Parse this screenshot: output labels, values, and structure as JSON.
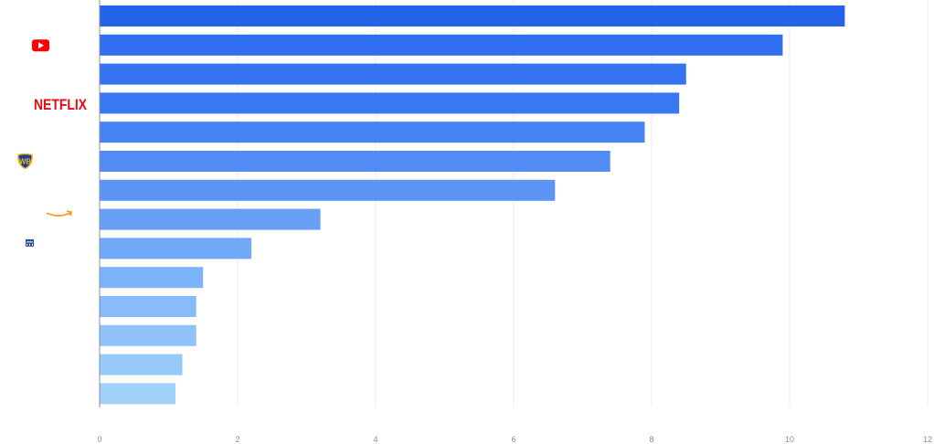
{
  "chart_data": {
    "type": "bar",
    "orientation": "horizontal",
    "title": "",
    "xlabel": "",
    "ylabel": "",
    "xlim": [
      0,
      12
    ],
    "xticks": [
      "0",
      "2",
      "4",
      "6",
      "8",
      "10",
      "12"
    ],
    "grid": true,
    "categories": [
      "",
      "YouTube",
      "",
      "Netflix",
      "",
      "Warner Bros",
      "",
      "Amazon",
      "",
      "",
      "",
      "",
      "",
      ""
    ],
    "values": [
      10.8,
      9.9,
      8.5,
      8.4,
      7.9,
      7.4,
      6.6,
      3.2,
      2.2,
      1.5,
      1.4,
      1.4,
      1.2,
      1.1
    ],
    "colors": [
      "#2563eb",
      "#2f6ef0",
      "#3473f1",
      "#3a78f2",
      "#4682f3",
      "#518bf4",
      "#5c95f5",
      "#679ff6",
      "#72a9f7",
      "#7db3f8",
      "#88bcf8",
      "#8fc3f9",
      "#97caf9",
      "#a1d2fa"
    ],
    "logos": [
      {
        "row": 1,
        "name": "youtube-logo",
        "color": "#ff0000"
      },
      {
        "row": 3,
        "name": "netflix-logo",
        "text": "NETFLIX",
        "color": "#e50914"
      },
      {
        "row": 5,
        "name": "warner-bros-logo",
        "text": "WB",
        "color": "#1a3e9b"
      },
      {
        "row": 7,
        "name": "amazon-logo",
        "color": "#ff9900"
      },
      {
        "row": 8,
        "name": "building-logo",
        "color": "#2a5298"
      }
    ]
  }
}
